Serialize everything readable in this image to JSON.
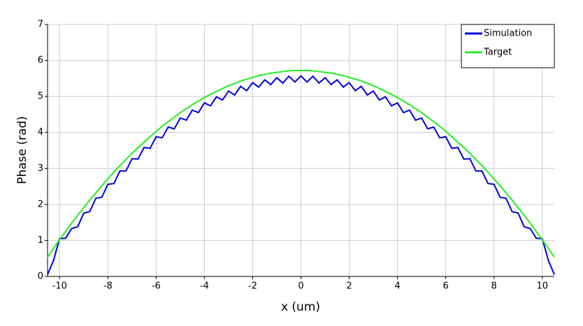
{
  "chart_data": {
    "type": "line",
    "xlabel": "x (um)",
    "ylabel": "Phase (rad)",
    "x": [
      -10.5,
      -10.25,
      -10,
      -9.75,
      -9.5,
      -9.25,
      -9,
      -8.75,
      -8.5,
      -8.25,
      -8,
      -7.75,
      -7.5,
      -7.25,
      -7,
      -6.75,
      -6.5,
      -6.25,
      -6,
      -5.75,
      -5.5,
      -5.25,
      -5,
      -4.75,
      -4.5,
      -4.25,
      -4,
      -3.75,
      -3.5,
      -3.25,
      -3,
      -2.75,
      -2.5,
      -2.25,
      -2,
      -1.75,
      -1.5,
      -1.25,
      -1,
      -0.75,
      -0.5,
      -0.25,
      0,
      0.25,
      0.5,
      0.75,
      1,
      1.25,
      1.5,
      1.75,
      2,
      2.25,
      2.5,
      2.75,
      3,
      3.25,
      3.5,
      3.75,
      4,
      4.25,
      4.5,
      4.75,
      5,
      5.25,
      5.5,
      5.75,
      6,
      6.25,
      6.5,
      6.75,
      7,
      7.25,
      7.5,
      7.75,
      8,
      8.25,
      8.5,
      8.75,
      9,
      9.25,
      9.5,
      9.75,
      10,
      10.25,
      10.5
    ],
    "series": [
      {
        "name": "Simulation",
        "color": "#0000dd",
        "values": [
          0.05,
          0.45,
          1.05,
          1.06,
          1.33,
          1.38,
          1.76,
          1.8,
          2.17,
          2.2,
          2.56,
          2.58,
          2.93,
          2.93,
          3.27,
          3.26,
          3.58,
          3.56,
          3.88,
          3.85,
          4.15,
          4.1,
          4.4,
          4.34,
          4.62,
          4.55,
          4.82,
          4.74,
          4.99,
          4.9,
          5.15,
          5.04,
          5.28,
          5.16,
          5.38,
          5.26,
          5.46,
          5.33,
          5.52,
          5.37,
          5.56,
          5.4,
          5.57,
          5.4,
          5.56,
          5.37,
          5.52,
          5.33,
          5.46,
          5.26,
          5.38,
          5.16,
          5.28,
          5.04,
          5.15,
          4.9,
          4.99,
          4.74,
          4.82,
          4.55,
          4.62,
          4.34,
          4.4,
          4.1,
          4.15,
          3.85,
          3.88,
          3.56,
          3.58,
          3.26,
          3.27,
          2.93,
          2.93,
          2.58,
          2.56,
          2.2,
          2.17,
          1.8,
          1.76,
          1.38,
          1.33,
          1.06,
          1.05,
          0.45,
          0.05
        ]
      },
      {
        "name": "Target",
        "color": "#22ee22",
        "values": [
          0.54,
          0.78,
          1.02,
          1.25,
          1.48,
          1.7,
          1.91,
          2.12,
          2.32,
          2.52,
          2.71,
          2.9,
          3.08,
          3.25,
          3.42,
          3.58,
          3.73,
          3.88,
          4.03,
          4.17,
          4.3,
          4.42,
          4.55,
          4.66,
          4.77,
          4.87,
          4.97,
          5.06,
          5.14,
          5.22,
          5.3,
          5.36,
          5.43,
          5.48,
          5.53,
          5.58,
          5.61,
          5.65,
          5.67,
          5.69,
          5.71,
          5.72,
          5.72,
          5.72,
          5.71,
          5.69,
          5.67,
          5.65,
          5.61,
          5.58,
          5.53,
          5.48,
          5.43,
          5.36,
          5.3,
          5.22,
          5.14,
          5.06,
          4.97,
          4.87,
          4.77,
          4.66,
          4.55,
          4.42,
          4.3,
          4.17,
          4.03,
          3.88,
          3.73,
          3.58,
          3.42,
          3.25,
          3.08,
          2.9,
          2.71,
          2.52,
          2.32,
          2.12,
          1.91,
          1.7,
          1.48,
          1.25,
          1.02,
          0.78,
          0.54
        ]
      }
    ],
    "xlim": [
      -10.5,
      10.5
    ],
    "xticks": [
      -10,
      -8,
      -6,
      -4,
      -2,
      0,
      2,
      4,
      6,
      8,
      10
    ],
    "ylim": [
      0,
      7
    ],
    "yticks": [
      0,
      1,
      2,
      3,
      4,
      5,
      6,
      7
    ],
    "grid": true,
    "legend": "upper right"
  }
}
